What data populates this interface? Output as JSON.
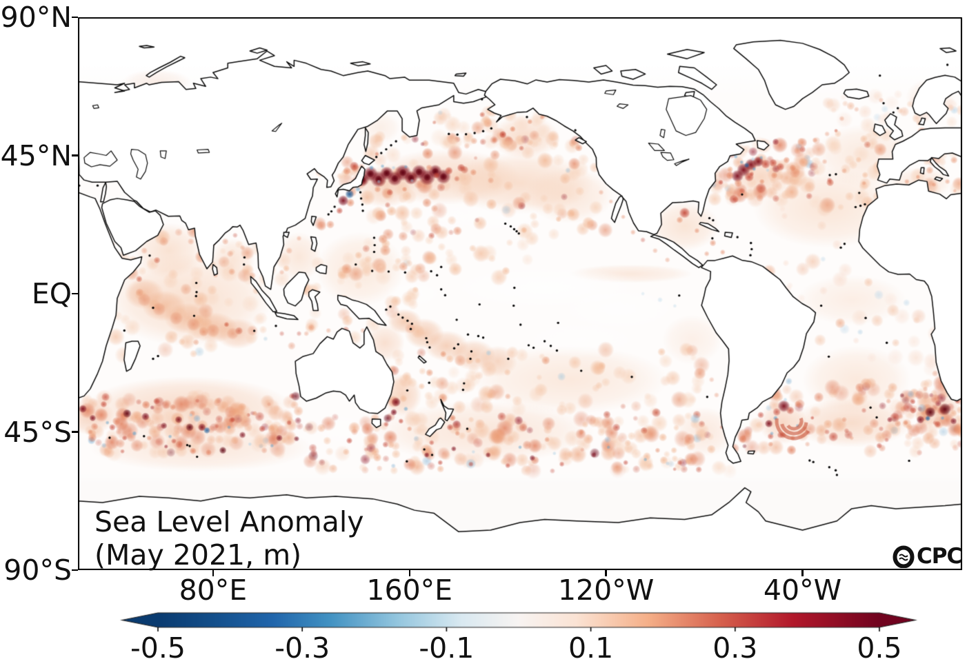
{
  "figure": {
    "title_line1": "Sea Level Anomaly",
    "title_line2": "(May 2021, m)",
    "logo_text": "CPC"
  },
  "axes": {
    "y_ticks": [
      {
        "label": "90°N",
        "lat": 90
      },
      {
        "label": "45°N",
        "lat": 45
      },
      {
        "label": "EQ",
        "lat": 0
      },
      {
        "label": "45°S",
        "lat": -45
      },
      {
        "label": "90°S",
        "lat": -90
      }
    ],
    "x_ticks": [
      {
        "label": "80°E",
        "lon_east": 80
      },
      {
        "label": "160°E",
        "lon_east": 160
      },
      {
        "label": "120°W",
        "lon_east": 240
      },
      {
        "label": "40°W",
        "lon_east": 320
      }
    ]
  },
  "colorbar": {
    "tick_labels": [
      "-0.5",
      "-0.3",
      "-0.1",
      "0.1",
      "0.3",
      "0.5"
    ],
    "tick_values": [
      -0.5,
      -0.3,
      -0.1,
      0.1,
      0.3,
      0.5
    ],
    "min": -0.5,
    "max": 0.5,
    "units": "m",
    "extend": "both",
    "colormap": "blue-white-red (RdBu reversed)",
    "negative_end_color": "#0a3b70",
    "positive_end_color": "#71031f"
  },
  "chart_data": {
    "type": "heatmap",
    "title": "Sea Level Anomaly",
    "period": "May 2021",
    "units": "m",
    "projection": "equirectangular world map, Pacific-centered",
    "lon_range_deg_east": [
      25,
      385
    ],
    "lat_range": [
      -90,
      90
    ],
    "scale": {
      "min": -0.5,
      "max": 0.5,
      "tick_interval": 0.2
    },
    "background_typical_value": "+0.02 to +0.10 over most ocean basins",
    "summary": "Predominantly weak positive sea level anomalies across the global ocean with intense positive eddies along western boundary currents and the Southern Ocean storm tracks; scattered small negative (blue) eddies; near-zero values along the equatorial Pacific; white (no data / masked) at high Arctic latitudes and along the Antarctic margin.",
    "notable_features": [
      {
        "name": "Kuroshio Extension eddy train east of Japan",
        "lon_east": "141-180",
        "lat": "37-40",
        "value_m": "+0.4 to +0.5"
      },
      {
        "name": "Negative eddy south of Japan",
        "lon_east": 135,
        "lat": 32,
        "value_m": "-0.4"
      },
      {
        "name": "Gulf Stream / North Atlantic Current eddies",
        "lon_east": "295-310",
        "lat": "38-43",
        "value_m": "+0.3 to +0.5 with -0.2 pockets"
      },
      {
        "name": "Brazil-Malvinas Confluence eddy rings",
        "lon_east": "306-318",
        "lat": "-36 to -45",
        "value_m": "+0.4"
      },
      {
        "name": "Agulhas Return Current south of Africa",
        "lon_east": "355-385 and 25-35",
        "lat": "-36 to -42",
        "value_m": "+0.4 to +0.5"
      },
      {
        "name": "South Indian Ocean storm track mottling",
        "lon_east": "30-110",
        "lat": "-35 to -52",
        "value_m": "mixed +0.3 eddies with scattered -0.3 (e.g. blue eddy near 77E, 44S)"
      },
      {
        "name": "East Australian Current eddies (Tasman Sea)",
        "lon_east": 154,
        "lat": "-35 to -41",
        "value_m": "+0.4"
      },
      {
        "name": "Gulf of Alaska positive eddies",
        "lon_east": "194-204",
        "lat": "50-54",
        "value_m": "+0.3"
      },
      {
        "name": "Loop Current eddy, Gulf of Mexico",
        "lon_east": 272,
        "lat": 26,
        "value_m": "+0.3"
      },
      {
        "name": "Tropical Indian Ocean broad positive band (Somalia toward 90E,13S)",
        "lon_east": "45-95",
        "lat": "-15 to 15",
        "value_m": "+0.05 to +0.15"
      },
      {
        "name": "South Pacific Convergence Zone diagonal band",
        "lon_east": "155-200",
        "lat": "-8 to -22",
        "value_m": "+0.1"
      },
      {
        "name": "North Pacific mid-latitude band",
        "lon_east": "140-240",
        "lat": "25-45",
        "value_m": "+0.05 to +0.1"
      },
      {
        "name": "Equatorial Pacific",
        "lon_east": "170-280",
        "lat": "-5 to 5",
        "value_m": "≈ 0.0"
      }
    ],
    "no_data_regions": "Arctic Ocean north of ~70N and Antarctic margin south of ~62S shown white"
  }
}
